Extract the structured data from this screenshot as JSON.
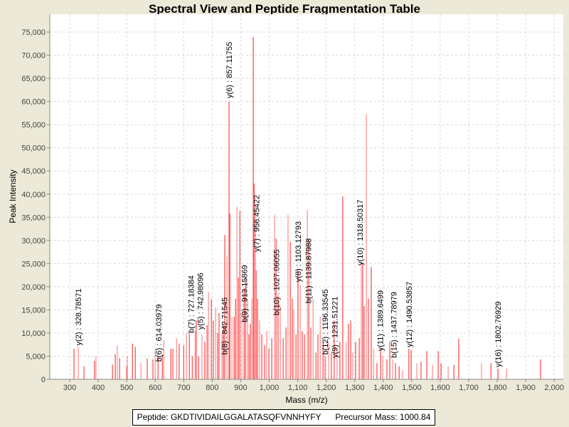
{
  "chart_data": {
    "type": "bar",
    "title": "Spectral View and Peptide Fragmentation Table",
    "xlabel": "Mass (m/z)",
    "ylabel": "Peak Intensity",
    "xlim": [
      230,
      2032
    ],
    "ylim": [
      0,
      78850
    ],
    "grid": true,
    "x_ticks": [
      300,
      400,
      500,
      600,
      700,
      800,
      900,
      1000,
      1100,
      1200,
      1300,
      1400,
      1500,
      1600,
      1700,
      1800,
      1900,
      2000
    ],
    "x_tick_labels": [
      "300",
      "400",
      "500",
      "600",
      "700",
      "800",
      "900",
      "1,000",
      "1,100",
      "1,200",
      "1,300",
      "1,400",
      "1,500",
      "1,600",
      "1,700",
      "1,800",
      "1,900",
      "2,000"
    ],
    "y_ticks": [
      0,
      5000,
      10000,
      15000,
      20000,
      25000,
      30000,
      35000,
      40000,
      45000,
      50000,
      55000,
      60000,
      65000,
      70000,
      75000
    ],
    "y_tick_labels": [
      "0",
      "5,000",
      "10,000",
      "15,000",
      "20,000",
      "25,000",
      "30,000",
      "35,000",
      "40,000",
      "45,000",
      "50,000",
      "55,000",
      "60,000",
      "65,000",
      "70,000",
      "75,000"
    ],
    "peak_color": "#ff4040",
    "peaks": [
      [
        315,
        6600
      ],
      [
        330,
        7000
      ],
      [
        350,
        2800
      ],
      [
        387,
        4000
      ],
      [
        392,
        5000
      ],
      [
        450,
        3200
      ],
      [
        460,
        5400
      ],
      [
        467,
        7300
      ],
      [
        475,
        4600
      ],
      [
        500,
        2800
      ],
      [
        502,
        5000
      ],
      [
        520,
        7700
      ],
      [
        530,
        7000
      ],
      [
        550,
        3500
      ],
      [
        572,
        4500
      ],
      [
        592,
        4300
      ],
      [
        600,
        6600
      ],
      [
        610,
        5000
      ],
      [
        625,
        5400
      ],
      [
        630,
        8500
      ],
      [
        655,
        6600
      ],
      [
        662,
        6600
      ],
      [
        675,
        8900
      ],
      [
        684,
        7700
      ],
      [
        700,
        7300
      ],
      [
        710,
        10000
      ],
      [
        720,
        10000
      ],
      [
        730,
        5000
      ],
      [
        740,
        10400
      ],
      [
        744,
        12700
      ],
      [
        752,
        5000
      ],
      [
        764,
        9700
      ],
      [
        774,
        8100
      ],
      [
        782,
        11700
      ],
      [
        787,
        18900
      ],
      [
        797,
        17300
      ],
      [
        804,
        12700
      ],
      [
        812,
        15500
      ],
      [
        819,
        10000
      ],
      [
        824,
        14300
      ],
      [
        834,
        9700
      ],
      [
        839,
        12000
      ],
      [
        844,
        31200
      ],
      [
        852,
        26600
      ],
      [
        859,
        60000
      ],
      [
        862,
        35800
      ],
      [
        869,
        13500
      ],
      [
        877,
        13500
      ],
      [
        882,
        17400
      ],
      [
        887,
        37300
      ],
      [
        892,
        22000
      ],
      [
        897,
        36400
      ],
      [
        904,
        14300
      ],
      [
        912,
        19700
      ],
      [
        917,
        22000
      ],
      [
        924,
        17400
      ],
      [
        929,
        9700
      ],
      [
        934,
        12000
      ],
      [
        939,
        17400
      ],
      [
        944,
        73900
      ],
      [
        947,
        42300
      ],
      [
        952,
        37300
      ],
      [
        954,
        23500
      ],
      [
        959,
        17400
      ],
      [
        966,
        12700
      ],
      [
        974,
        9700
      ],
      [
        984,
        7300
      ],
      [
        991,
        10400
      ],
      [
        999,
        6600
      ],
      [
        1009,
        8900
      ],
      [
        1019,
        35500
      ],
      [
        1024,
        30400
      ],
      [
        1031,
        18100
      ],
      [
        1039,
        15800
      ],
      [
        1049,
        8900
      ],
      [
        1059,
        11200
      ],
      [
        1066,
        35500
      ],
      [
        1074,
        29700
      ],
      [
        1081,
        17400
      ],
      [
        1086,
        15000
      ],
      [
        1094,
        9700
      ],
      [
        1101,
        23800
      ],
      [
        1109,
        20400
      ],
      [
        1116,
        10400
      ],
      [
        1124,
        9700
      ],
      [
        1134,
        36600
      ],
      [
        1139,
        30400
      ],
      [
        1146,
        11200
      ],
      [
        1154,
        17400
      ],
      [
        1164,
        5800
      ],
      [
        1171,
        9700
      ],
      [
        1179,
        13500
      ],
      [
        1189,
        8100
      ],
      [
        1196,
        5000
      ],
      [
        1209,
        8100
      ],
      [
        1218,
        5800
      ],
      [
        1228,
        12700
      ],
      [
        1238,
        6600
      ],
      [
        1248,
        8100
      ],
      [
        1258,
        39500
      ],
      [
        1270,
        8100
      ],
      [
        1278,
        12000
      ],
      [
        1286,
        12700
      ],
      [
        1293,
        5800
      ],
      [
        1303,
        8100
      ],
      [
        1316,
        8900
      ],
      [
        1323,
        25500
      ],
      [
        1328,
        25000
      ],
      [
        1333,
        15800
      ],
      [
        1341,
        57300
      ],
      [
        1348,
        17400
      ],
      [
        1358,
        24300
      ],
      [
        1366,
        6600
      ],
      [
        1378,
        3500
      ],
      [
        1391,
        6600
      ],
      [
        1398,
        5000
      ],
      [
        1413,
        4300
      ],
      [
        1423,
        8100
      ],
      [
        1433,
        4300
      ],
      [
        1443,
        3500
      ],
      [
        1456,
        2800
      ],
      [
        1468,
        2000
      ],
      [
        1490,
        6600
      ],
      [
        1498,
        6300
      ],
      [
        1518,
        3500
      ],
      [
        1533,
        3800
      ],
      [
        1553,
        6100
      ],
      [
        1573,
        3100
      ],
      [
        1593,
        6100
      ],
      [
        1603,
        3500
      ],
      [
        1628,
        2800
      ],
      [
        1648,
        3100
      ],
      [
        1665,
        8800
      ],
      [
        1745,
        3500
      ],
      [
        1778,
        3500
      ],
      [
        1803,
        2300
      ],
      [
        1833,
        2300
      ],
      [
        1952,
        4300
      ]
    ],
    "annotations": [
      {
        "label": "y(2) : 328.78571",
        "mz": 330,
        "intensity": 7000
      },
      {
        "label": "b(6) : 614.03979",
        "mz": 612,
        "intensity": 3500
      },
      {
        "label": "b(7) : 727.18384",
        "mz": 725,
        "intensity": 9700
      },
      {
        "label": "y(5) : 742.98096",
        "mz": 740,
        "intensity": 10400
      },
      {
        "label": "b(8) : 842.71545",
        "mz": 843,
        "intensity": 5000
      },
      {
        "label": "y(6) : 857.11755",
        "mz": 859,
        "intensity": 60400
      },
      {
        "label": "b(9) : 913.15869",
        "mz": 913,
        "intensity": 12000
      },
      {
        "label": "y(7) : 956.45422",
        "mz": 955,
        "intensity": 27200
      },
      {
        "label": "b(10) : 1027.06055",
        "mz": 1025,
        "intensity": 13500
      },
      {
        "label": "y(8) : 1103.12793",
        "mz": 1101,
        "intensity": 20700
      },
      {
        "label": "b(11) : 1139.87988",
        "mz": 1137,
        "intensity": 16100
      },
      {
        "label": "b(12) : 1196.33545",
        "mz": 1196,
        "intensity": 5000
      },
      {
        "label": "y(9) : 1231.51221",
        "mz": 1230,
        "intensity": 4300
      },
      {
        "label": "y(10) : 1318.50317",
        "mz": 1318,
        "intensity": 24300
      },
      {
        "label": "y(11) : 1389.6499",
        "mz": 1389,
        "intensity": 5800
      },
      {
        "label": "b(15) : 1437.78979",
        "mz": 1437,
        "intensity": 4300
      },
      {
        "label": "y(12) : 1490.53857",
        "mz": 1490,
        "intensity": 6600
      },
      {
        "label": "y(16) : 1802.76929",
        "mz": 1802,
        "intensity": 2300
      }
    ]
  },
  "legend": {
    "peptide": "Peptide: GKDTIVIDAILGGALATASQFVNNHYFY",
    "precursor": "Precursor Mass: 1000.84"
  }
}
